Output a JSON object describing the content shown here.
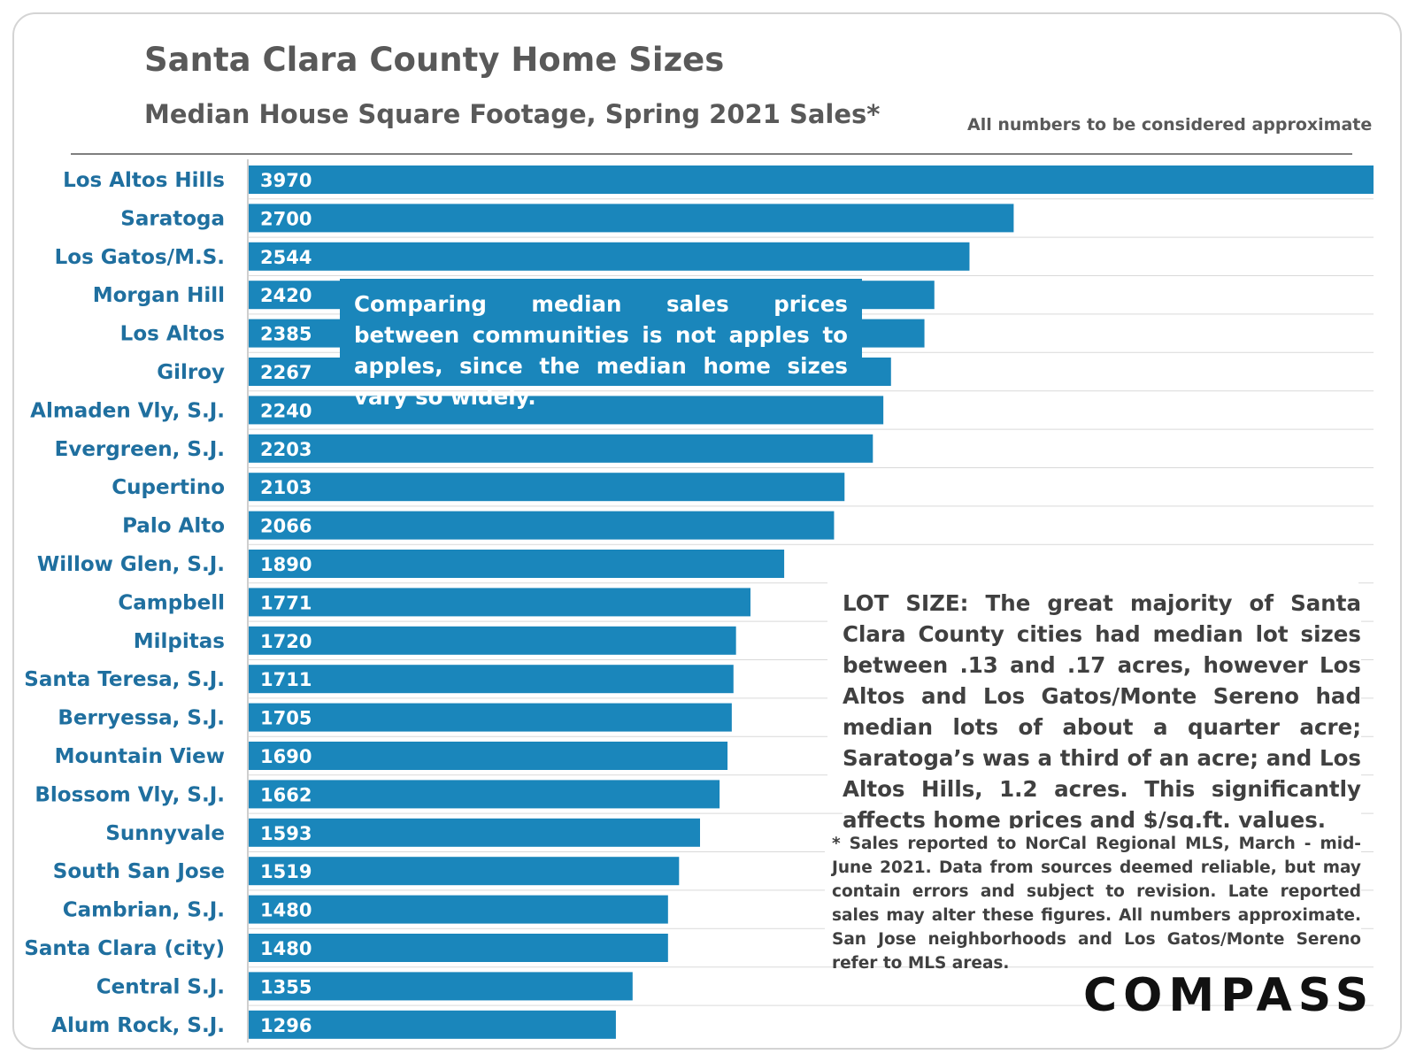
{
  "header": {
    "title": "Santa Clara County Home Sizes",
    "subtitle": "Median House Square Footage, Spring 2021 Sales*",
    "note": "All numbers to be considered approximate"
  },
  "callout": {
    "text": "Comparing median sales prices between communities is not apples to apples, since the median home sizes vary so widely."
  },
  "lot_size_note": {
    "text": "LOT SIZE: The great majority of Santa Clara County cities had median lot sizes between .13 and .17 acres, however Los Altos and Los Gatos/Monte Sereno had median lots of about a quarter acre; Saratoga’s was a third of an acre; and Los Altos Hills, 1.2 acres. This significantly affects home prices and $/sq.ft. values."
  },
  "footnote": {
    "text": "* Sales reported to NorCal Regional MLS, March - mid-June 2021. Data from sources deemed reliable, but may contain errors and subject to revision. Late reported sales may alter these figures. All numbers approximate. San Jose neighborhoods and Los Gatos/Monte Sereno refer to MLS areas."
  },
  "logo": {
    "text": "COMPASS"
  },
  "colors": {
    "bar": "#1a86bb",
    "label": "#1f6f9f",
    "title": "#595959",
    "grid": "#d9d9d9"
  },
  "chart_data": {
    "type": "bar",
    "orientation": "horizontal",
    "title": "Santa Clara County Home Sizes",
    "subtitle": "Median House Square Footage, Spring 2021 Sales*",
    "xlabel": "",
    "ylabel": "",
    "xlim": [
      0,
      3970
    ],
    "categories": [
      "Los Altos Hills",
      "Saratoga",
      "Los Gatos/M.S.",
      "Morgan Hill",
      "Los Altos",
      "Gilroy",
      "Almaden Vly, S.J.",
      "Evergreen, S.J.",
      "Cupertino",
      "Palo Alto",
      "Willow Glen, S.J.",
      "Campbell",
      "Milpitas",
      "Santa Teresa, S.J.",
      "Berryessa, S.J.",
      "Mountain View",
      "Blossom Vly, S.J.",
      "Sunnyvale",
      "South San Jose",
      "Cambrian, S.J.",
      "Santa Clara (city)",
      "Central S.J.",
      "Alum Rock, S.J."
    ],
    "values": [
      3970,
      2700,
      2544,
      2420,
      2385,
      2267,
      2240,
      2203,
      2103,
      2066,
      1890,
      1771,
      1720,
      1711,
      1705,
      1690,
      1662,
      1593,
      1519,
      1480,
      1480,
      1355,
      1296
    ],
    "data_labels": true,
    "grid": true
  }
}
